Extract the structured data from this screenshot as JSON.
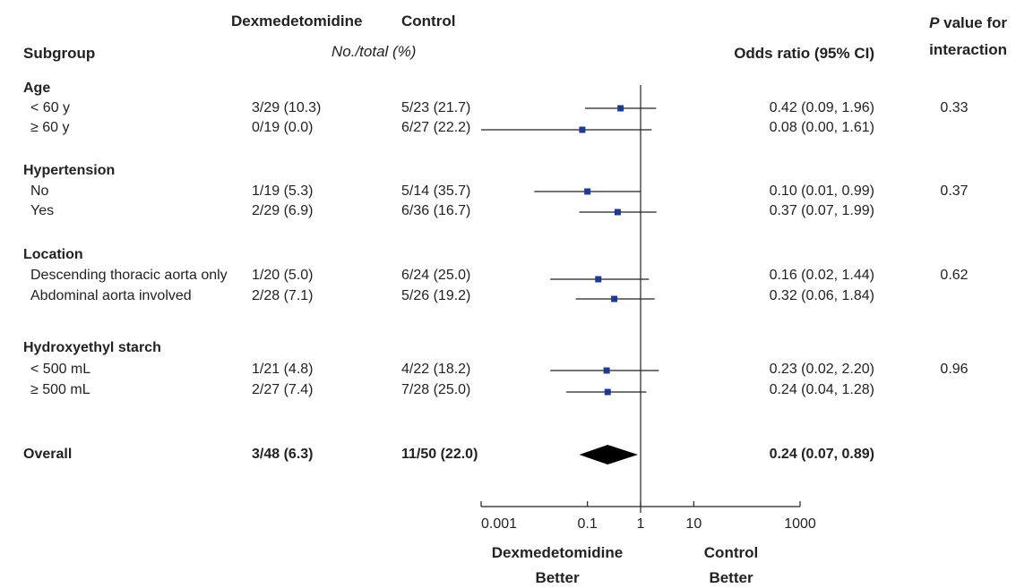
{
  "header": {
    "subgroup": "Subgroup",
    "dex": "Dexmedetomidine",
    "control": "Control",
    "counts": "No./total (%)",
    "or": "Odds ratio (95% CI)",
    "p_line1_italic": "P",
    "p_line1_rest": " value for",
    "p_line2": "interaction"
  },
  "groups": [
    {
      "name": "Age",
      "p": "0.33",
      "rows": [
        {
          "label": "< 60 y",
          "dex": "3/29 (10.3)",
          "ctl": "5/23 (21.7)",
          "or_text": "0.42 (0.09, 1.96)",
          "or": 0.42,
          "lo": 0.09,
          "hi": 1.96
        },
        {
          "label": "≥ 60 y",
          "dex": "0/19 (0.0)",
          "ctl": "6/27 (22.2)",
          "or_text": "0.08 (0.00, 1.61)",
          "or": 0.08,
          "lo": 0.001,
          "hi": 1.61
        }
      ]
    },
    {
      "name": "Hypertension",
      "p": "0.37",
      "rows": [
        {
          "label": "No",
          "dex": "1/19 (5.3)",
          "ctl": "5/14 (35.7)",
          "or_text": "0.10 (0.01, 0.99)",
          "or": 0.1,
          "lo": 0.01,
          "hi": 0.99
        },
        {
          "label": "Yes",
          "dex": "2/29 (6.9)",
          "ctl": "6/36 (16.7)",
          "or_text": "0.37 (0.07, 1.99)",
          "or": 0.37,
          "lo": 0.07,
          "hi": 1.99
        }
      ]
    },
    {
      "name": "Location",
      "p": "0.62",
      "rows": [
        {
          "label": "Descending thoracic aorta only",
          "dex": "1/20 (5.0)",
          "ctl": "6/24 (25.0)",
          "or_text": "0.16 (0.02, 1.44)",
          "or": 0.16,
          "lo": 0.02,
          "hi": 1.44
        },
        {
          "label": "Abdominal aorta involved",
          "dex": "2/28 (7.1)",
          "ctl": "5/26 (19.2)",
          "or_text": "0.32 (0.06, 1.84)",
          "or": 0.32,
          "lo": 0.06,
          "hi": 1.84
        }
      ]
    },
    {
      "name": "Hydroxyethyl starch",
      "p": "0.96",
      "rows": [
        {
          "label": "< 500 mL",
          "dex": "1/21 (4.8)",
          "ctl": "4/22 (18.2)",
          "or_text": "0.23 (0.02, 2.20)",
          "or": 0.23,
          "lo": 0.02,
          "hi": 2.2
        },
        {
          "label": "≥ 500 mL",
          "dex": "2/27 (7.4)",
          "ctl": "7/28 (25.0)",
          "or_text": "0.24 (0.04, 1.28)",
          "or": 0.24,
          "lo": 0.04,
          "hi": 1.28
        }
      ]
    }
  ],
  "overall": {
    "label": "Overall",
    "dex": "3/48 (6.3)",
    "ctl": "11/50 (22.0)",
    "or_text": "0.24 (0.07, 0.89)"
  },
  "axis": {
    "ticks": [
      0.001,
      0.1,
      1,
      10,
      1000
    ],
    "tick_labels": [
      "0.001",
      "0.1",
      "1",
      "10",
      "1000"
    ],
    "left_label_1": "Dexmedetomidine",
    "left_label_2": "Better",
    "right_label_1": "Control",
    "right_label_2": "Better"
  },
  "chart_data": {
    "type": "forest",
    "scale": "log",
    "xlim": [
      0.001,
      1000
    ],
    "reference_line": 1,
    "marker_color": "#1f3a93",
    "points": [
      {
        "subgroup": "Age",
        "label": "< 60 y",
        "or": 0.42,
        "ci": [
          0.09,
          1.96
        ]
      },
      {
        "subgroup": "Age",
        "label": "≥ 60 y",
        "or": 0.08,
        "ci": [
          0.001,
          1.61
        ]
      },
      {
        "subgroup": "Hypertension",
        "label": "No",
        "or": 0.1,
        "ci": [
          0.01,
          0.99
        ]
      },
      {
        "subgroup": "Hypertension",
        "label": "Yes",
        "or": 0.37,
        "ci": [
          0.07,
          1.99
        ]
      },
      {
        "subgroup": "Location",
        "label": "Descending thoracic aorta only",
        "or": 0.16,
        "ci": [
          0.02,
          1.44
        ]
      },
      {
        "subgroup": "Location",
        "label": "Abdominal aorta involved",
        "or": 0.32,
        "ci": [
          0.06,
          1.84
        ]
      },
      {
        "subgroup": "Hydroxyethyl starch",
        "label": "< 500 mL",
        "or": 0.23,
        "ci": [
          0.02,
          2.2
        ]
      },
      {
        "subgroup": "Hydroxyethyl starch",
        "label": "≥ 500 mL",
        "or": 0.24,
        "ci": [
          0.04,
          1.28
        ]
      }
    ],
    "overall": {
      "label": "Overall",
      "or": 0.24,
      "ci": [
        0.07,
        0.89
      ]
    }
  }
}
